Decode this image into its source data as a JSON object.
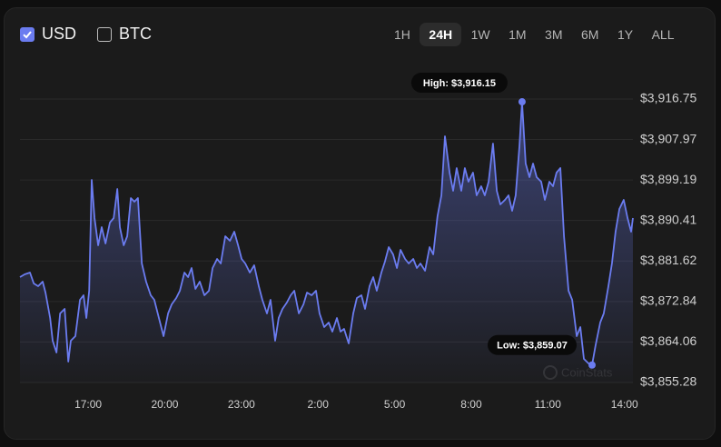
{
  "controls": {
    "currencies": [
      {
        "label": "USD",
        "checked": true
      },
      {
        "label": "BTC",
        "checked": false
      }
    ],
    "ranges": [
      "1H",
      "24H",
      "1W",
      "1M",
      "3M",
      "6M",
      "1Y",
      "ALL"
    ],
    "active_range": "24H"
  },
  "chart_data": {
    "type": "line",
    "color": "#6b7cf0",
    "grid": true,
    "high_label": "High: $3,916.15",
    "low_label": "Low: $3,859.07",
    "watermark": "CoinStats",
    "xlim": [
      14.33,
      38.33
    ],
    "xticks": [
      {
        "value": 17,
        "label": "17:00"
      },
      {
        "value": 20,
        "label": "20:00"
      },
      {
        "value": 23,
        "label": "23:00"
      },
      {
        "value": 26,
        "label": "2:00"
      },
      {
        "value": 29,
        "label": "5:00"
      },
      {
        "value": 32,
        "label": "8:00"
      },
      {
        "value": 35,
        "label": "11:00"
      },
      {
        "value": 38,
        "label": "14:00"
      }
    ],
    "ylim": [
      3855.28,
      3922.46
    ],
    "yticks": [
      {
        "value": 3855.28,
        "label": "$3,855.28"
      },
      {
        "value": 3864.06,
        "label": "$3,864.06"
      },
      {
        "value": 3872.84,
        "label": "$3,872.84"
      },
      {
        "value": 3881.62,
        "label": "$3,881.62"
      },
      {
        "value": 3890.41,
        "label": "$3,890.41"
      },
      {
        "value": 3899.19,
        "label": "$3,899.19"
      },
      {
        "value": 3907.97,
        "label": "$3,907.97"
      },
      {
        "value": 3916.75,
        "label": "$3,916.75"
      }
    ],
    "x": [
      14.33,
      14.51,
      14.72,
      14.87,
      15.04,
      15.22,
      15.33,
      15.51,
      15.61,
      15.76,
      15.9,
      16.08,
      16.22,
      16.32,
      16.5,
      16.68,
      16.82,
      16.93,
      17.04,
      17.14,
      17.25,
      17.39,
      17.53,
      17.68,
      17.85,
      18.0,
      18.14,
      18.24,
      18.39,
      18.53,
      18.67,
      18.81,
      18.95,
      19.1,
      19.27,
      19.45,
      19.59,
      19.77,
      19.95,
      20.13,
      20.27,
      20.45,
      20.59,
      20.77,
      20.91,
      21.05,
      21.2,
      21.37,
      21.55,
      21.73,
      21.87,
      22.05,
      22.19,
      22.37,
      22.55,
      22.72,
      22.87,
      23.01,
      23.15,
      23.33,
      23.5,
      23.68,
      23.82,
      24.0,
      24.14,
      24.32,
      24.46,
      24.61,
      24.78,
      24.93,
      25.07,
      25.25,
      25.43,
      25.57,
      25.75,
      25.92,
      26.06,
      26.24,
      26.42,
      26.56,
      26.74,
      26.88,
      27.02,
      27.2,
      27.38,
      27.52,
      27.7,
      27.84,
      28.02,
      28.16,
      28.3,
      28.48,
      28.62,
      28.77,
      28.94,
      29.09,
      29.23,
      29.41,
      29.55,
      29.73,
      29.87,
      30.01,
      30.19,
      30.37,
      30.51,
      30.68,
      30.83,
      30.97,
      31.15,
      31.29,
      31.43,
      31.61,
      31.75,
      31.89,
      32.07,
      32.21,
      32.39,
      32.53,
      32.68,
      32.85,
      33.0,
      33.14,
      33.32,
      33.46,
      33.6,
      33.74,
      33.89,
      33.99,
      34.13,
      34.28,
      34.42,
      34.56,
      34.74,
      34.88,
      35.06,
      35.2,
      35.34,
      35.49,
      35.63,
      35.81,
      35.95,
      36.13,
      36.27,
      36.41,
      36.59,
      36.73,
      36.87,
      37.05,
      37.19,
      37.37,
      37.51,
      37.65,
      37.8,
      37.97,
      38.12,
      38.26,
      38.33
    ],
    "values": [
      3878.13,
      3878.72,
      3879.12,
      3876.75,
      3876.16,
      3877.15,
      3874.78,
      3869.27,
      3864.34,
      3861.78,
      3870.25,
      3871.24,
      3859.81,
      3864.34,
      3865.33,
      3873.21,
      3874.19,
      3869.27,
      3875.18,
      3899.21,
      3890.94,
      3885.03,
      3888.97,
      3885.42,
      3889.95,
      3890.94,
      3897.24,
      3888.97,
      3885.03,
      3887.0,
      3895.27,
      3894.48,
      3895.27,
      3881.09,
      3877.15,
      3874.19,
      3873.21,
      3869.27,
      3865.33,
      3870.25,
      3872.22,
      3873.6,
      3875.18,
      3879.12,
      3878.13,
      3880.1,
      3875.57,
      3877.15,
      3874.19,
      3875.18,
      3880.1,
      3882.07,
      3881.09,
      3887.0,
      3886.01,
      3887.98,
      3885.03,
      3882.07,
      3881.09,
      3879.12,
      3880.69,
      3876.16,
      3873.21,
      3870.25,
      3873.21,
      3864.34,
      3869.27,
      3871.24,
      3872.62,
      3874.19,
      3875.18,
      3870.25,
      3872.22,
      3874.78,
      3874.19,
      3875.18,
      3870.25,
      3867.3,
      3868.28,
      3866.31,
      3869.27,
      3866.31,
      3866.9,
      3863.75,
      3870.25,
      3873.6,
      3874.19,
      3871.24,
      3876.16,
      3878.13,
      3875.18,
      3879.12,
      3881.48,
      3884.63,
      3883.06,
      3880.1,
      3884.04,
      3882.07,
      3881.09,
      3882.07,
      3880.1,
      3881.09,
      3879.51,
      3884.63,
      3883.06,
      3891.33,
      3895.86,
      3908.67,
      3900.79,
      3896.85,
      3901.77,
      3896.85,
      3901.77,
      3898.82,
      3900.79,
      3895.86,
      3897.83,
      3895.86,
      3898.82,
      3907.09,
      3896.85,
      3893.89,
      3894.88,
      3895.86,
      3892.51,
      3895.86,
      3906.7,
      3916.15,
      3902.76,
      3899.8,
      3902.76,
      3899.8,
      3898.82,
      3894.88,
      3898.82,
      3897.83,
      3900.79,
      3901.77,
      3887.0,
      3875.18,
      3873.21,
      3865.33,
      3867.3,
      3860.4,
      3859.42,
      3859.07,
      3863.36,
      3868.28,
      3870.25,
      3876.16,
      3881.09,
      3887.98,
      3892.91,
      3894.88,
      3890.94,
      3887.98,
      3890.94
    ]
  }
}
